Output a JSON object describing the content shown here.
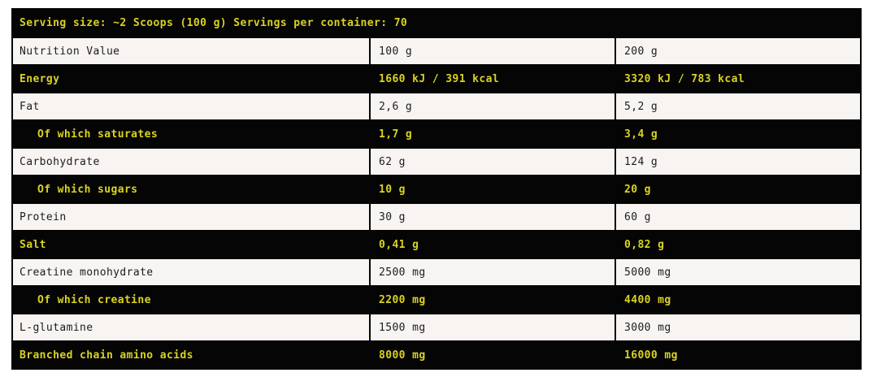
{
  "colors": {
    "accent_yellow": "#d9d322",
    "row_dark_bg": "#050505",
    "row_light_bg": "#f8f4f2",
    "row_light_text": "#1c1c1c",
    "page_bg": "#ffffff"
  },
  "header": {
    "serving_info": "Serving size: ~2 Scoops (100 g) Servings per container: 70"
  },
  "table": {
    "rows": [
      {
        "label": "Nutrition Value",
        "per_100g": "100 g",
        "per_200g": "200 g",
        "variant": "light",
        "indent": false
      },
      {
        "label": "Energy",
        "per_100g": "1660 kJ / 391 kcal",
        "per_200g": "3320 kJ / 783 kcal",
        "variant": "dark",
        "indent": false
      },
      {
        "label": "Fat",
        "per_100g": "2,6 g",
        "per_200g": "5,2 g",
        "variant": "light",
        "indent": false
      },
      {
        "label": "Of which saturates",
        "per_100g": "1,7 g",
        "per_200g": "3,4 g",
        "variant": "dark",
        "indent": true
      },
      {
        "label": "Carbohydrate",
        "per_100g": "62 g",
        "per_200g": "124 g",
        "variant": "light",
        "indent": false
      },
      {
        "label": "Of which sugars",
        "per_100g": "10 g",
        "per_200g": "20 g",
        "variant": "dark",
        "indent": true
      },
      {
        "label": "Protein",
        "per_100g": "30 g",
        "per_200g": "60 g",
        "variant": "light",
        "indent": false
      },
      {
        "label": "Salt",
        "per_100g": "0,41 g",
        "per_200g": "0,82 g",
        "variant": "dark",
        "indent": false
      },
      {
        "label": "Creatine monohydrate",
        "per_100g": "2500 mg",
        "per_200g": "5000 mg",
        "variant": "light",
        "indent": false
      },
      {
        "label": "Of which creatine",
        "per_100g": "2200 mg",
        "per_200g": "4400 mg",
        "variant": "dark",
        "indent": true
      },
      {
        "label": "L-glutamine",
        "per_100g": "1500 mg",
        "per_200g": "3000 mg",
        "variant": "light",
        "indent": false
      },
      {
        "label": "Branched chain amino acids",
        "per_100g": "8000 mg",
        "per_200g": "16000 mg",
        "variant": "dark",
        "indent": false
      }
    ]
  }
}
